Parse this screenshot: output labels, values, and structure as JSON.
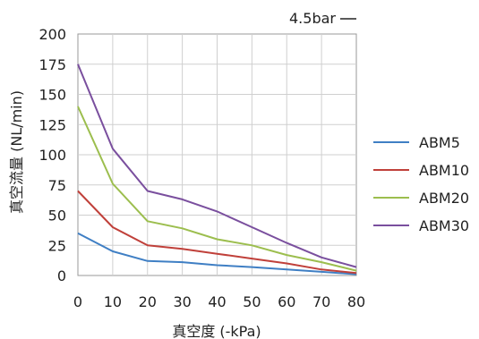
{
  "chart_data": {
    "type": "line",
    "annotation": "4.5bar",
    "xlabel": "真空度 (-kPa)",
    "ylabel": "真空流量 (NL/min)",
    "x": [
      0,
      10,
      20,
      30,
      40,
      50,
      60,
      70,
      80
    ],
    "xlim": [
      0,
      80
    ],
    "ylim": [
      0,
      200
    ],
    "xticks": [
      "0",
      "10",
      "20",
      "30",
      "40",
      "50",
      "60",
      "70",
      "80"
    ],
    "yticks": [
      "0",
      "25",
      "50",
      "75",
      "100",
      "125",
      "150",
      "175",
      "200"
    ],
    "grid": true,
    "legend_position": "right",
    "series": [
      {
        "name": "ABM5",
        "color": "#3f7fc4",
        "values": [
          35,
          20,
          12,
          11,
          8.5,
          7,
          5,
          3,
          1
        ]
      },
      {
        "name": "ABM10",
        "color": "#c0403a",
        "values": [
          70,
          40,
          25,
          22,
          18,
          14,
          10,
          5,
          2
        ]
      },
      {
        "name": "ABM20",
        "color": "#9cbe4e",
        "values": [
          140,
          76,
          45,
          39,
          30,
          25,
          17,
          11,
          4
        ]
      },
      {
        "name": "ABM30",
        "color": "#7a4f9e",
        "values": [
          175,
          105,
          70,
          63,
          53,
          40,
          27,
          15,
          7
        ]
      }
    ]
  }
}
